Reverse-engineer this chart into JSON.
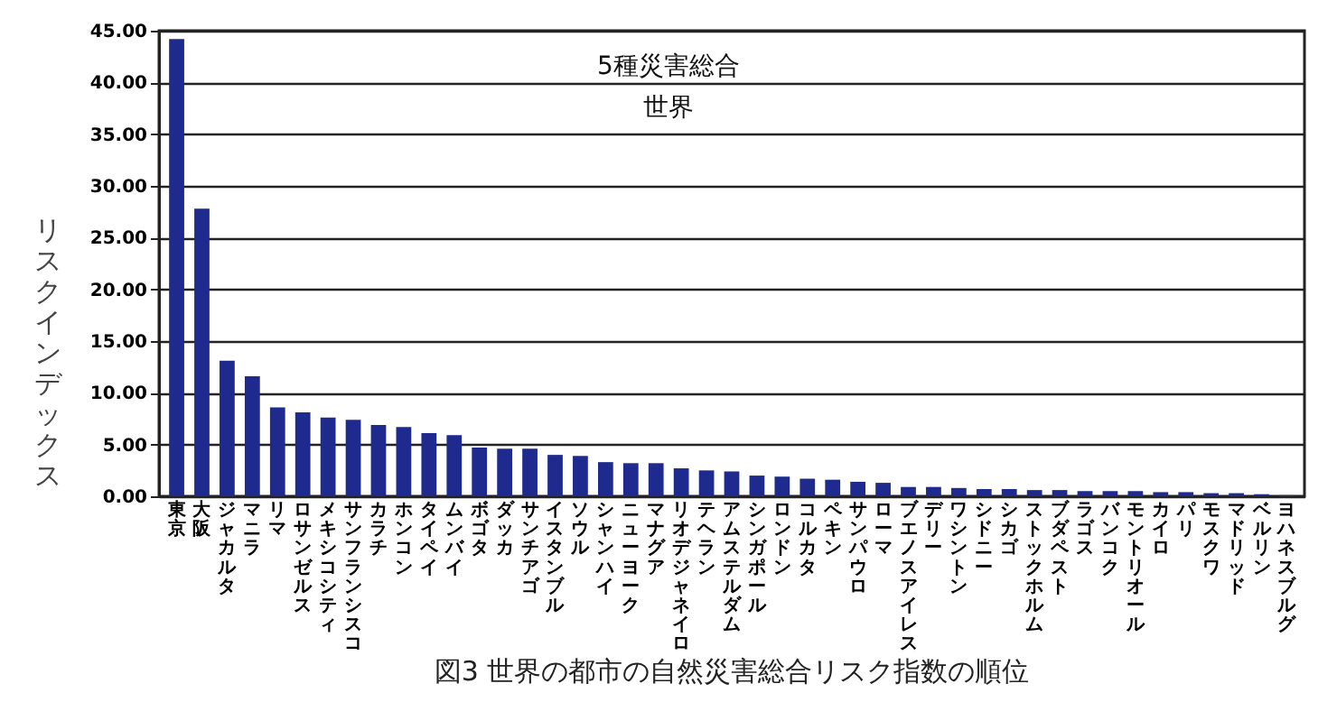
{
  "chart_data": {
    "type": "bar",
    "title": "図3 世界の都市の自然災害総合リスク指数の順位",
    "ylabel": "リスクインデックス",
    "annotations": [
      "5種災害総合",
      "世界"
    ],
    "categories": [
      "東京",
      "大阪",
      "ジャカルタ",
      "マニラ",
      "リマ",
      "ロサンゼルス",
      "メキシコシティ",
      "サンフランシスコ",
      "カラチ",
      "ホンコン",
      "タイペイ",
      "ムンバイ",
      "ボゴタ",
      "ダッカ",
      "サンチアゴ",
      "イスタンブル",
      "ソウル",
      "シャンハイ",
      "ニューヨーク",
      "マナグア",
      "リオデジャネイロ",
      "テヘラン",
      "アムステルダム",
      "シンガポール",
      "ロンドン",
      "コルカタ",
      "ペキン",
      "サンパウロ",
      "ローマ",
      "ブエノスアイレス",
      "デリー",
      "ワシントン",
      "シドニー",
      "シカゴ",
      "ストックホルム",
      "ブダペスト",
      "ラゴス",
      "バンコク",
      "モントリオール",
      "カイロ",
      "パリ",
      "モスクワ",
      "マドリッド",
      "ベルリン",
      "ヨハネスブルグ"
    ],
    "values": [
      44.2,
      27.8,
      13.1,
      11.6,
      8.6,
      8.1,
      7.6,
      7.4,
      6.9,
      6.7,
      6.1,
      5.9,
      4.7,
      4.6,
      4.6,
      4.0,
      3.9,
      3.3,
      3.2,
      3.2,
      2.7,
      2.5,
      2.4,
      2.0,
      1.9,
      1.7,
      1.6,
      1.4,
      1.3,
      0.9,
      0.9,
      0.8,
      0.7,
      0.7,
      0.6,
      0.6,
      0.5,
      0.5,
      0.5,
      0.4,
      0.4,
      0.3,
      0.3,
      0.2,
      0.1
    ],
    "color": "#1e2a8e",
    "ylim": [
      0,
      45
    ],
    "yticks": [
      {
        "value": 0,
        "label": "0.00"
      },
      {
        "value": 5,
        "label": "5.00"
      },
      {
        "value": 10,
        "label": "10.00"
      },
      {
        "value": 15,
        "label": "15.00"
      },
      {
        "value": 20,
        "label": "20.00"
      },
      {
        "value": 25,
        "label": "25.00"
      },
      {
        "value": 30,
        "label": "30.00"
      },
      {
        "value": 35,
        "label": "35.00"
      },
      {
        "value": 40,
        "label": "40.00"
      },
      {
        "value": 45,
        "label": "45.00"
      }
    ],
    "grid": "y"
  }
}
